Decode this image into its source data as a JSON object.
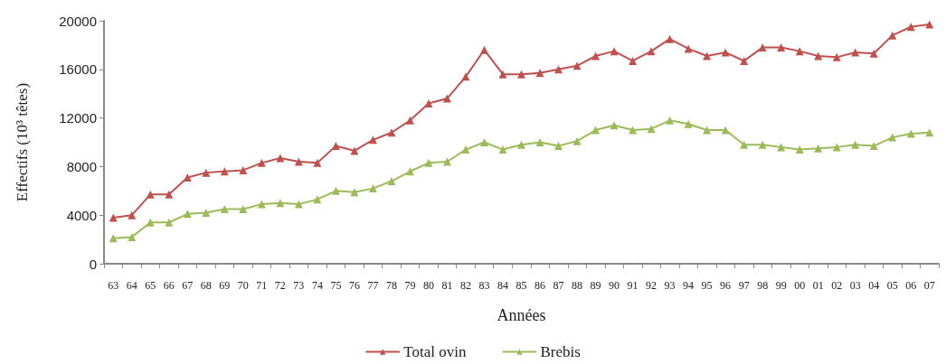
{
  "chart_data": {
    "type": "line",
    "xlabel": "Années",
    "ylabel": "Effectifs (10³ têtes)",
    "categories": [
      "63",
      "64",
      "65",
      "66",
      "67",
      "68",
      "69",
      "70",
      "71",
      "72",
      "73",
      "74",
      "75",
      "76",
      "77",
      "78",
      "79",
      "80",
      "81",
      "82",
      "83",
      "84",
      "85",
      "86",
      "87",
      "88",
      "89",
      "90",
      "91",
      "92",
      "93",
      "94",
      "95",
      "96",
      "97",
      "98",
      "99",
      "00",
      "01",
      "02",
      "03",
      "04",
      "05",
      "06",
      "07"
    ],
    "series": [
      {
        "name": "Total ovin",
        "color": "#c0504d",
        "values": [
          3800,
          4000,
          5700,
          5700,
          7100,
          7500,
          7600,
          7700,
          8300,
          8700,
          8400,
          8300,
          9700,
          9300,
          10200,
          10800,
          11800,
          13200,
          13600,
          15400,
          17600,
          15600,
          15600,
          15700,
          16000,
          16300,
          17100,
          17500,
          16700,
          17500,
          18500,
          17700,
          17100,
          17400,
          16700,
          17800,
          17800,
          17500,
          17100,
          17000,
          17400,
          17300,
          18800,
          19500,
          19700
        ]
      },
      {
        "name": "Brebis",
        "color": "#9bbb59",
        "values": [
          2100,
          2200,
          3400,
          3400,
          4100,
          4200,
          4500,
          4500,
          4900,
          5000,
          4900,
          5300,
          6000,
          5900,
          6200,
          6800,
          7600,
          8300,
          8400,
          9400,
          10000,
          9400,
          9800,
          10000,
          9700,
          10100,
          11000,
          11400,
          11000,
          11100,
          11800,
          11500,
          11000,
          11000,
          9800,
          9800,
          9600,
          9400,
          9500,
          9600,
          9800,
          9700,
          10400,
          10700,
          10800
        ]
      }
    ],
    "ylim": [
      0,
      20000
    ],
    "yticks": [
      0,
      4000,
      8000,
      12000,
      16000,
      20000
    ],
    "grid": false,
    "legend": "bottom",
    "marker": "triangle",
    "line_style": "solid"
  }
}
